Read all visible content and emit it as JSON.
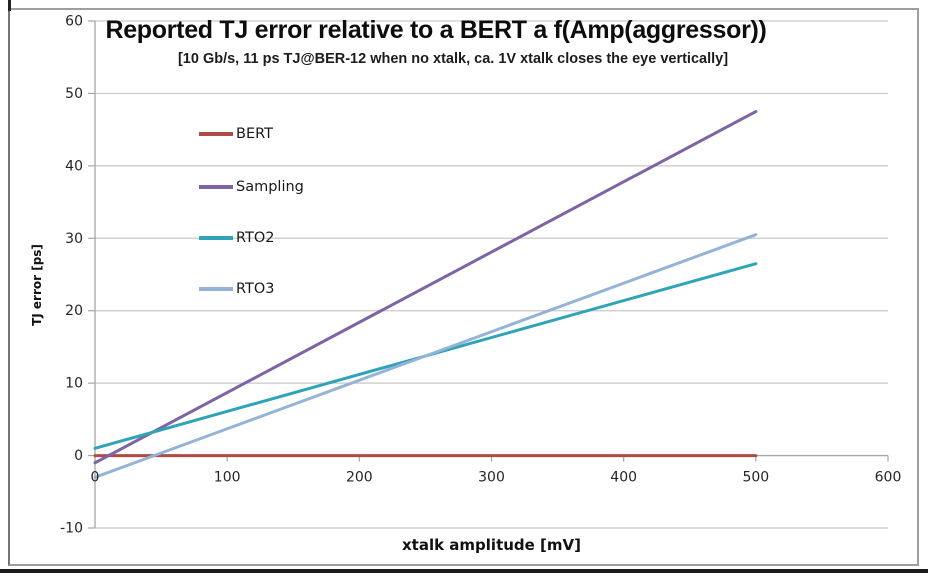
{
  "chart_data": {
    "type": "line",
    "title": "Reported TJ error relative to a BERT a f(Amp(aggressor))",
    "subtitle": "[10 Gb/s, 11 ps TJ@BER-12 when no xtalk, ca. 1V xtalk closes the eye vertically]",
    "xlabel": "xtalk amplitude [mV]",
    "ylabel": "TJ error [ps]",
    "xlim": [
      0,
      600
    ],
    "ylim": [
      -10,
      60
    ],
    "x_ticks": [
      0,
      100,
      200,
      300,
      400,
      500,
      600
    ],
    "y_ticks": [
      -10,
      0,
      10,
      20,
      30,
      40,
      50,
      60
    ],
    "grid": "horizontal",
    "legend_position": "inside-upper-left",
    "series": [
      {
        "name": "BERT",
        "color": "#B04A44",
        "x": [
          0,
          500
        ],
        "values": [
          0,
          0
        ]
      },
      {
        "name": "Sampling",
        "color": "#7C64A5",
        "x": [
          0,
          500
        ],
        "values": [
          -1,
          47.5
        ]
      },
      {
        "name": "RTO2",
        "color": "#2FA3B8",
        "x": [
          0,
          500
        ],
        "values": [
          1,
          26.5
        ]
      },
      {
        "name": "RTO3",
        "color": "#95B3D7",
        "x": [
          0,
          500
        ],
        "values": [
          -3,
          30.5
        ]
      }
    ],
    "colors": {
      "gridline": "#C9C9C9",
      "axis": "#A6A6A6",
      "tick_label": "#262626"
    }
  }
}
